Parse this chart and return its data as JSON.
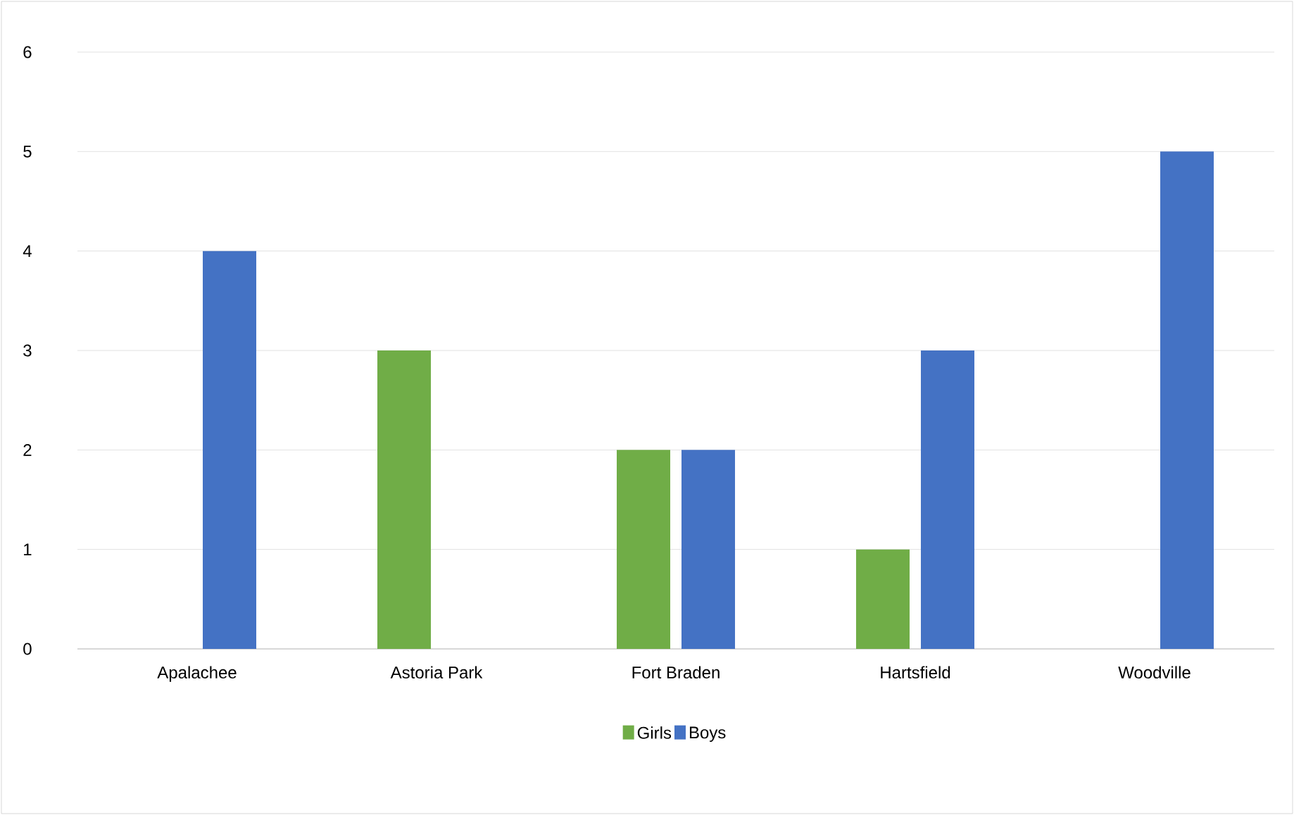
{
  "chart_data": {
    "type": "bar",
    "categories": [
      "Apalachee",
      "Astoria Park",
      "Fort Braden",
      "Hartsfield",
      "Woodville"
    ],
    "series": [
      {
        "name": "Girls",
        "color": "#70ad47",
        "values": [
          0,
          3,
          2,
          1,
          0
        ]
      },
      {
        "name": "Boys",
        "color": "#4472c4",
        "values": [
          4,
          0,
          2,
          3,
          5
        ]
      }
    ],
    "ylim": [
      0,
      6
    ],
    "yticks": [
      0,
      1,
      2,
      3,
      4,
      5,
      6
    ],
    "grid": "y",
    "legend": "bottom"
  }
}
